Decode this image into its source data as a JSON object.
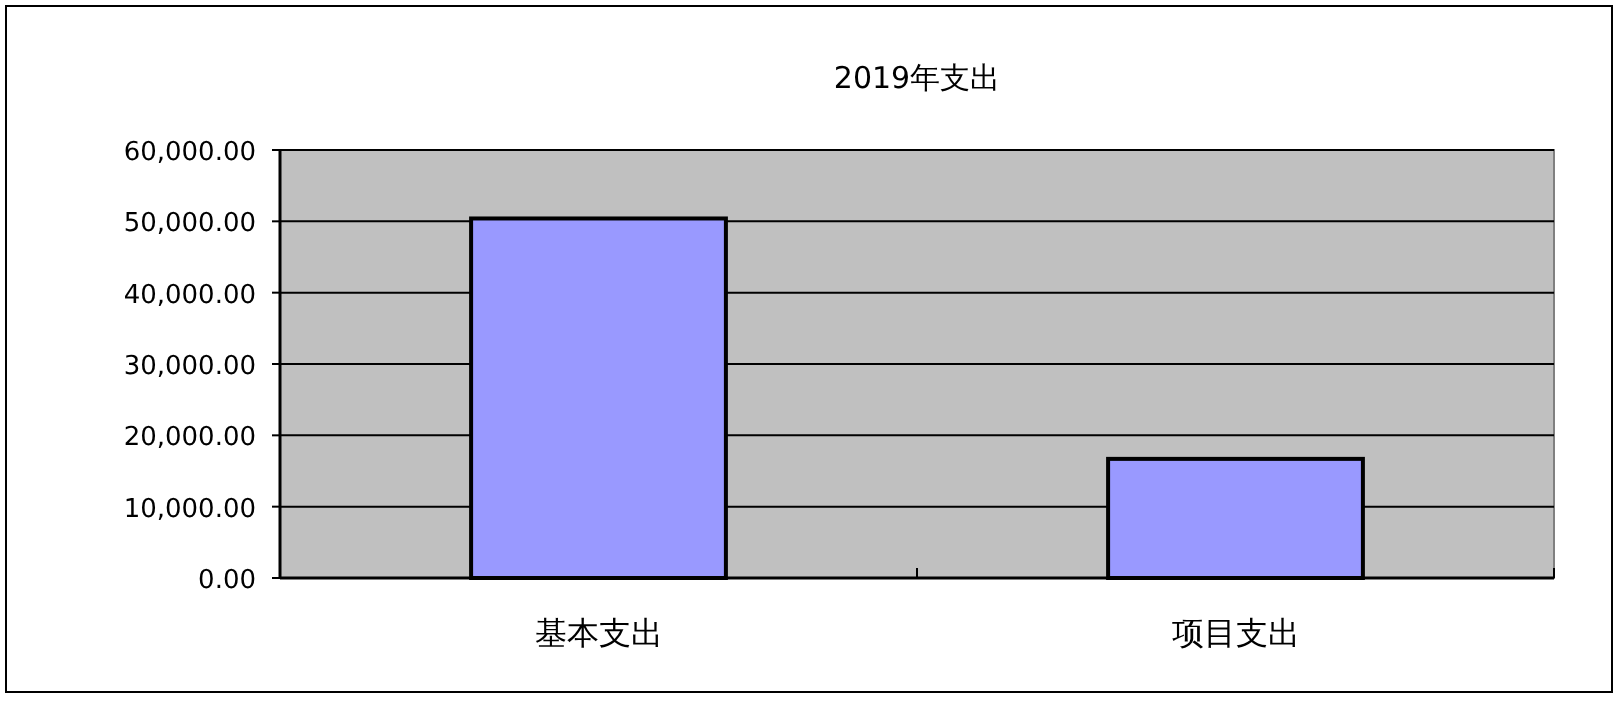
{
  "chart_data": {
    "type": "bar",
    "title": "2019年支出",
    "categories": [
      "基本支出",
      "项目支出"
    ],
    "values": [
      50400,
      16700
    ],
    "color": "#9999ff",
    "ylim": [
      0,
      60000
    ],
    "yticks": [
      {
        "value": 0,
        "label": "0.00"
      },
      {
        "value": 10000,
        "label": "10,000.00"
      },
      {
        "value": 20000,
        "label": "20,000.00"
      },
      {
        "value": 30000,
        "label": "30,000.00"
      },
      {
        "value": 40000,
        "label": "40,000.00"
      },
      {
        "value": 50000,
        "label": "50,000.00"
      },
      {
        "value": 60000,
        "label": "60,000.00"
      }
    ],
    "grid": "y"
  }
}
